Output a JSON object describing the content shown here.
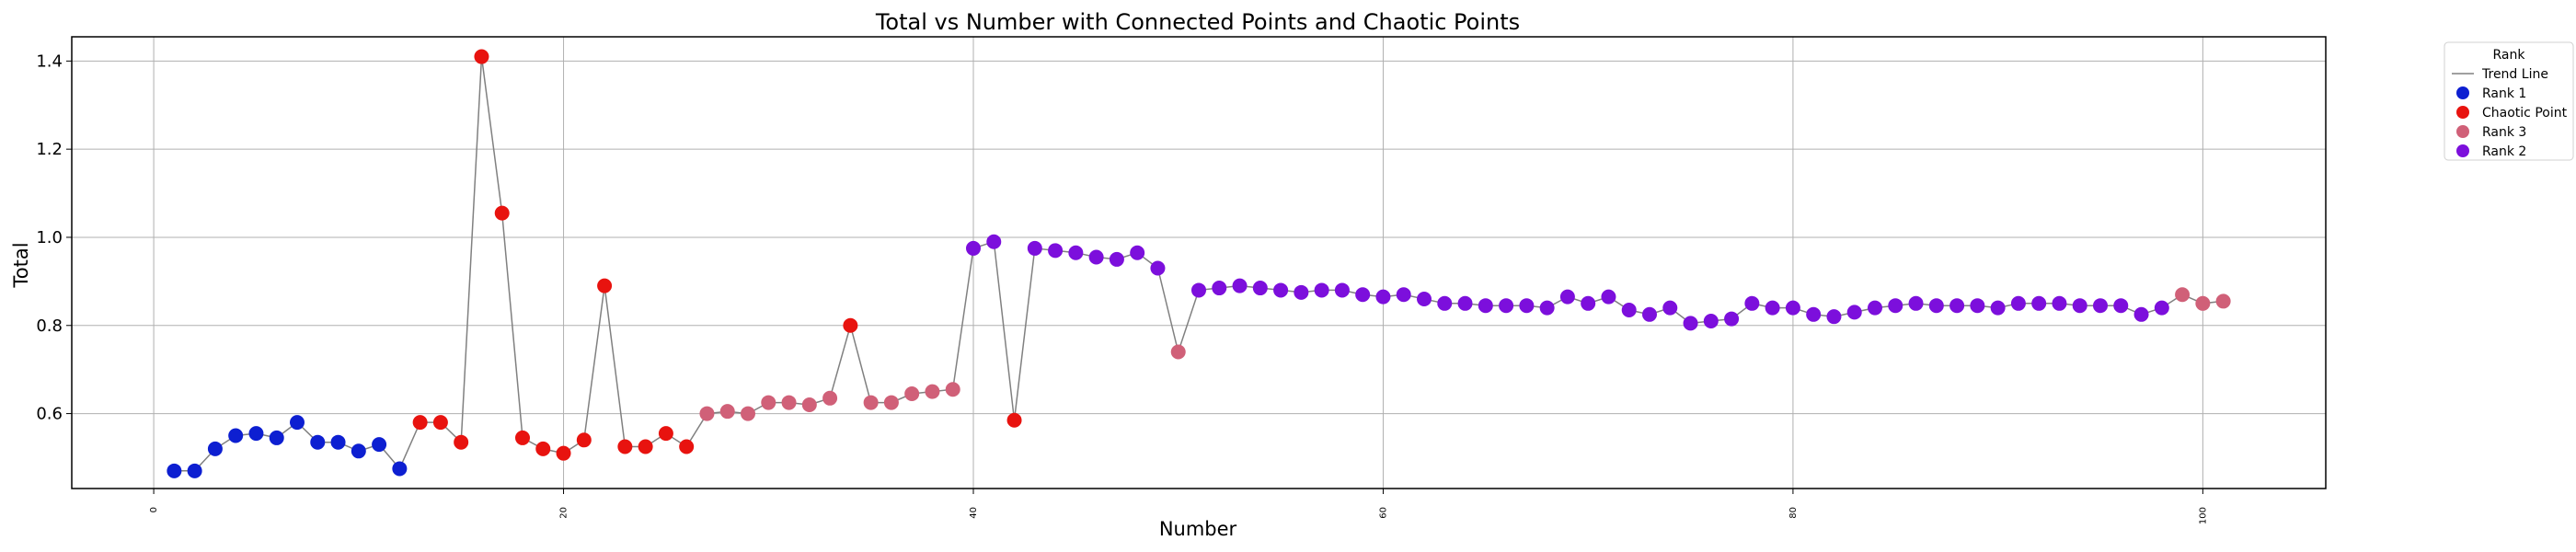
{
  "chart_data": {
    "type": "scatter",
    "title": "Total vs Number with Connected Points and Chaotic Points",
    "xlabel": "Number",
    "ylabel": "Total",
    "xlim": [
      -4,
      106
    ],
    "ylim": [
      0.43,
      1.455
    ],
    "xticks": [
      0,
      20,
      40,
      60,
      80,
      100
    ],
    "yticks": [
      0.6,
      0.8,
      1.0,
      1.2,
      1.4
    ],
    "ytick_labels": [
      "0.6",
      "0.8",
      "1.0",
      "1.2",
      "1.4"
    ],
    "grid": true,
    "legend": {
      "title": "Rank",
      "placement": "outside-top-right",
      "entries": [
        {
          "label": "Trend Line",
          "kind": "line",
          "color": "#808080"
        },
        {
          "label": "Rank 1",
          "kind": "marker",
          "color": "#0d1fd1"
        },
        {
          "label": "Chaotic Point",
          "kind": "marker",
          "color": "#e8130f"
        },
        {
          "label": "Rank 3",
          "kind": "marker",
          "color": "#d06078"
        },
        {
          "label": "Rank 2",
          "kind": "marker",
          "color": "#7c0fdc"
        }
      ]
    },
    "colors": {
      "Rank 1": "#0d1fd1",
      "Chaotic Point": "#e8130f",
      "Rank 3": "#d06078",
      "Rank 2": "#7c0fdc",
      "Trend Line": "#808080"
    },
    "x": [
      1,
      2,
      3,
      4,
      5,
      6,
      7,
      8,
      9,
      10,
      11,
      12,
      13,
      14,
      15,
      16,
      17,
      18,
      19,
      20,
      21,
      22,
      23,
      24,
      25,
      26,
      27,
      28,
      29,
      30,
      31,
      32,
      33,
      34,
      35,
      36,
      37,
      38,
      39,
      40,
      41,
      42,
      43,
      44,
      45,
      46,
      47,
      48,
      49,
      50,
      51,
      52,
      53,
      54,
      55,
      56,
      57,
      58,
      59,
      60,
      61,
      62,
      63,
      64,
      65,
      66,
      67,
      68,
      69,
      70,
      71,
      72,
      73,
      74,
      75,
      76,
      77,
      78,
      79,
      80,
      81,
      82,
      83,
      84,
      85,
      86,
      87,
      88,
      89,
      90,
      91,
      92,
      93,
      94,
      95,
      96,
      97,
      98,
      99,
      100,
      101
    ],
    "y": [
      0.47,
      0.47,
      0.52,
      0.55,
      0.555,
      0.545,
      0.58,
      0.535,
      0.535,
      0.515,
      0.53,
      0.475,
      0.58,
      0.58,
      0.535,
      1.41,
      1.055,
      0.545,
      0.52,
      0.51,
      0.54,
      0.89,
      0.525,
      0.525,
      0.555,
      0.525,
      0.6,
      0.605,
      0.6,
      0.625,
      0.625,
      0.62,
      0.635,
      0.8,
      0.625,
      0.625,
      0.645,
      0.65,
      0.655,
      0.975,
      0.99,
      0.585,
      0.975,
      0.97,
      0.965,
      0.955,
      0.95,
      0.965,
      0.93,
      0.74,
      0.88,
      0.885,
      0.89,
      0.885,
      0.88,
      0.875,
      0.88,
      0.88,
      0.87,
      0.865,
      0.87,
      0.86,
      0.85,
      0.85,
      0.845,
      0.845,
      0.845,
      0.84,
      0.865,
      0.85,
      0.865,
      0.835,
      0.825,
      0.84,
      0.805,
      0.81,
      0.815,
      0.85,
      0.84,
      0.84,
      0.825,
      0.82,
      0.83,
      0.84,
      0.845,
      0.85,
      0.845,
      0.845,
      0.845,
      0.84,
      0.85,
      0.85,
      0.85,
      0.845,
      0.845,
      0.845,
      0.825,
      0.84,
      0.87,
      0.85,
      0.855
    ],
    "rank": [
      "Rank 1",
      "Rank 1",
      "Rank 1",
      "Rank 1",
      "Rank 1",
      "Rank 1",
      "Rank 1",
      "Rank 1",
      "Rank 1",
      "Rank 1",
      "Rank 1",
      "Rank 1",
      "Chaotic Point",
      "Chaotic Point",
      "Chaotic Point",
      "Chaotic Point",
      "Chaotic Point",
      "Chaotic Point",
      "Chaotic Point",
      "Chaotic Point",
      "Chaotic Point",
      "Chaotic Point",
      "Chaotic Point",
      "Chaotic Point",
      "Chaotic Point",
      "Chaotic Point",
      "Rank 3",
      "Rank 3",
      "Rank 3",
      "Rank 3",
      "Rank 3",
      "Rank 3",
      "Rank 3",
      "Chaotic Point",
      "Rank 3",
      "Rank 3",
      "Rank 3",
      "Rank 3",
      "Rank 3",
      "Rank 2",
      "Rank 2",
      "Chaotic Point",
      "Rank 2",
      "Rank 2",
      "Rank 2",
      "Rank 2",
      "Rank 2",
      "Rank 2",
      "Rank 2",
      "Rank 3",
      "Rank 2",
      "Rank 2",
      "Rank 2",
      "Rank 2",
      "Rank 2",
      "Rank 2",
      "Rank 2",
      "Rank 2",
      "Rank 2",
      "Rank 2",
      "Rank 2",
      "Rank 2",
      "Rank 2",
      "Rank 2",
      "Rank 2",
      "Rank 2",
      "Rank 2",
      "Rank 2",
      "Rank 2",
      "Rank 2",
      "Rank 2",
      "Rank 2",
      "Rank 2",
      "Rank 2",
      "Rank 2",
      "Rank 2",
      "Rank 2",
      "Rank 2",
      "Rank 2",
      "Rank 2",
      "Rank 2",
      "Rank 2",
      "Rank 2",
      "Rank 2",
      "Rank 2",
      "Rank 2",
      "Rank 2",
      "Rank 2",
      "Rank 2",
      "Rank 2",
      "Rank 2",
      "Rank 2",
      "Rank 2",
      "Rank 2",
      "Rank 2",
      "Rank 2",
      "Rank 2",
      "Rank 2",
      "Rank 3",
      "Rank 3",
      "Rank 3"
    ]
  }
}
